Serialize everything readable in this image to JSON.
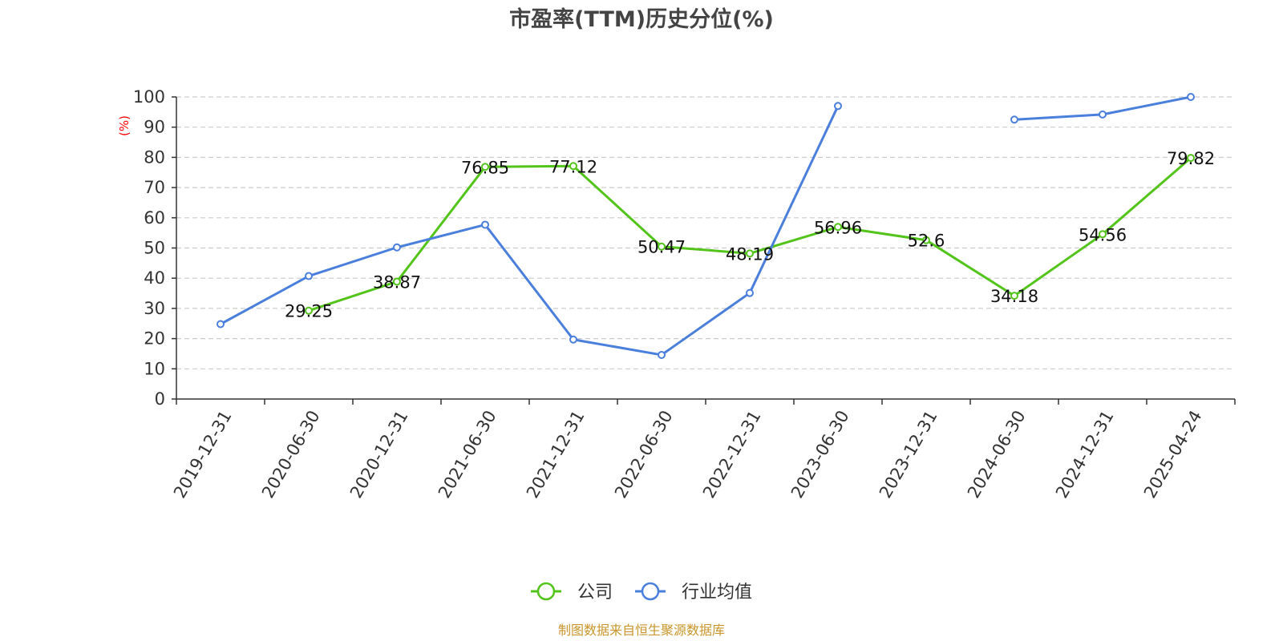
{
  "colors": {
    "company": "#52c41a",
    "industry": "#4a7fdc",
    "unit_label": "#ff0000",
    "source": "#c8962a",
    "grid": "#cccccc",
    "axis": "#333333"
  },
  "footer": {
    "source": "制图数据来自恒生聚源数据库"
  },
  "chart_data": {
    "type": "line",
    "title": "市盈率(TTM)历史分位(%)",
    "ylabel": "(%)",
    "ylim": [
      0,
      100
    ],
    "yticks": [
      "0",
      "10",
      "20",
      "30",
      "40",
      "50",
      "60",
      "70",
      "80",
      "90",
      "100"
    ],
    "grid": true,
    "legend_position": "bottom",
    "categories": [
      "2019-12-31",
      "2020-06-30",
      "2020-12-31",
      "2021-06-30",
      "2021-12-31",
      "2022-06-30",
      "2022-12-31",
      "2023-06-30",
      "2023-12-31",
      "2024-06-30",
      "2024-12-31",
      "2025-04-24"
    ],
    "series": [
      {
        "name": "公司",
        "color_key": "company",
        "values": [
          null,
          29.25,
          38.87,
          76.85,
          77.12,
          50.47,
          48.19,
          56.96,
          52.6,
          34.18,
          54.56,
          79.82
        ],
        "labels": [
          "",
          "29.25",
          "38.87",
          "76.85",
          "77.12",
          "50.47",
          "48.19",
          "56.96",
          "52.6",
          "34.18",
          "54.56",
          "79.82"
        ]
      },
      {
        "name": "行业均值",
        "color_key": "industry",
        "values": [
          24.8,
          40.7,
          50.2,
          57.7,
          19.7,
          14.6,
          35.1,
          97.0,
          null,
          92.5,
          94.2,
          100
        ],
        "labels": []
      }
    ]
  }
}
